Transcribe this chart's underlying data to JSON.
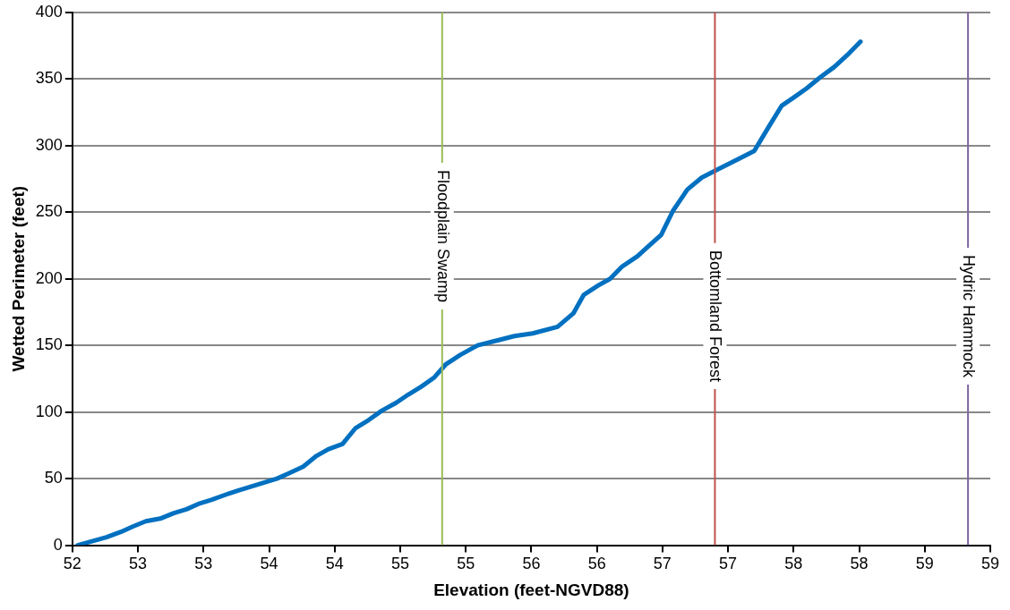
{
  "chart_data": {
    "type": "line",
    "xlabel": "Elevation (feet-NGVD88)",
    "ylabel": "Wetted Perimeter (feet)",
    "xlim": [
      52,
      59
    ],
    "xticks": [
      {
        "value": 52,
        "label": "52"
      },
      {
        "value": 52.5,
        "label": "53"
      },
      {
        "value": 53,
        "label": "53"
      },
      {
        "value": 53.5,
        "label": "54"
      },
      {
        "value": 54,
        "label": "54"
      },
      {
        "value": 54.5,
        "label": "55"
      },
      {
        "value": 55,
        "label": "55"
      },
      {
        "value": 55.5,
        "label": "56"
      },
      {
        "value": 56,
        "label": "56"
      },
      {
        "value": 56.5,
        "label": "57"
      },
      {
        "value": 57,
        "label": "57"
      },
      {
        "value": 57.5,
        "label": "58"
      },
      {
        "value": 58,
        "label": "58"
      },
      {
        "value": 58.5,
        "label": "59"
      },
      {
        "value": 59,
        "label": "59"
      }
    ],
    "ylim": [
      0,
      400
    ],
    "yticks": [
      0,
      50,
      100,
      150,
      200,
      250,
      300,
      350,
      400
    ],
    "grid": "y",
    "legend": false,
    "marker": "none",
    "line_style": "solid",
    "x": [
      52.04,
      52.26,
      52.37,
      52.46,
      52.56,
      52.67,
      52.77,
      52.87,
      52.96,
      53.06,
      53.17,
      53.26,
      53.36,
      53.46,
      53.56,
      53.65,
      53.76,
      53.86,
      53.95,
      54.06,
      54.16,
      54.26,
      54.36,
      54.47,
      54.56,
      54.66,
      54.76,
      54.85,
      54.96,
      55.09,
      55.25,
      55.37,
      55.51,
      55.7,
      55.82,
      55.9,
      56.01,
      56.1,
      56.19,
      56.31,
      56.4,
      56.49,
      56.58,
      56.69,
      56.8,
      56.94,
      57.1,
      57.2,
      57.31,
      57.41,
      57.5,
      57.6,
      57.7,
      57.81,
      57.91,
      58.01
    ],
    "series": [
      {
        "color": "#0070c0",
        "values": [
          0,
          6,
          10,
          14,
          18,
          20,
          24,
          27,
          31,
          34,
          38,
          41,
          44,
          47,
          50,
          54,
          59,
          67,
          72,
          76,
          88,
          94,
          101,
          107,
          113,
          119,
          126,
          136,
          143,
          150,
          154,
          157,
          159,
          164,
          174,
          188,
          195,
          200,
          209,
          217,
          225,
          233,
          251,
          267,
          276,
          283,
          291,
          296,
          314,
          330,
          336,
          343,
          351,
          359,
          368,
          378
        ]
      }
    ],
    "ref_lines": [
      {
        "axis": "x",
        "value": 54.82,
        "label": "Floodplain Swamp",
        "color": "#9bbb59"
      },
      {
        "axis": "x",
        "value": 56.9,
        "label": "Bottomland Forest",
        "color": "#c0504d"
      },
      {
        "axis": "x",
        "value": 58.83,
        "label": "Hydric Hammock",
        "color": "#8064a2"
      }
    ]
  }
}
